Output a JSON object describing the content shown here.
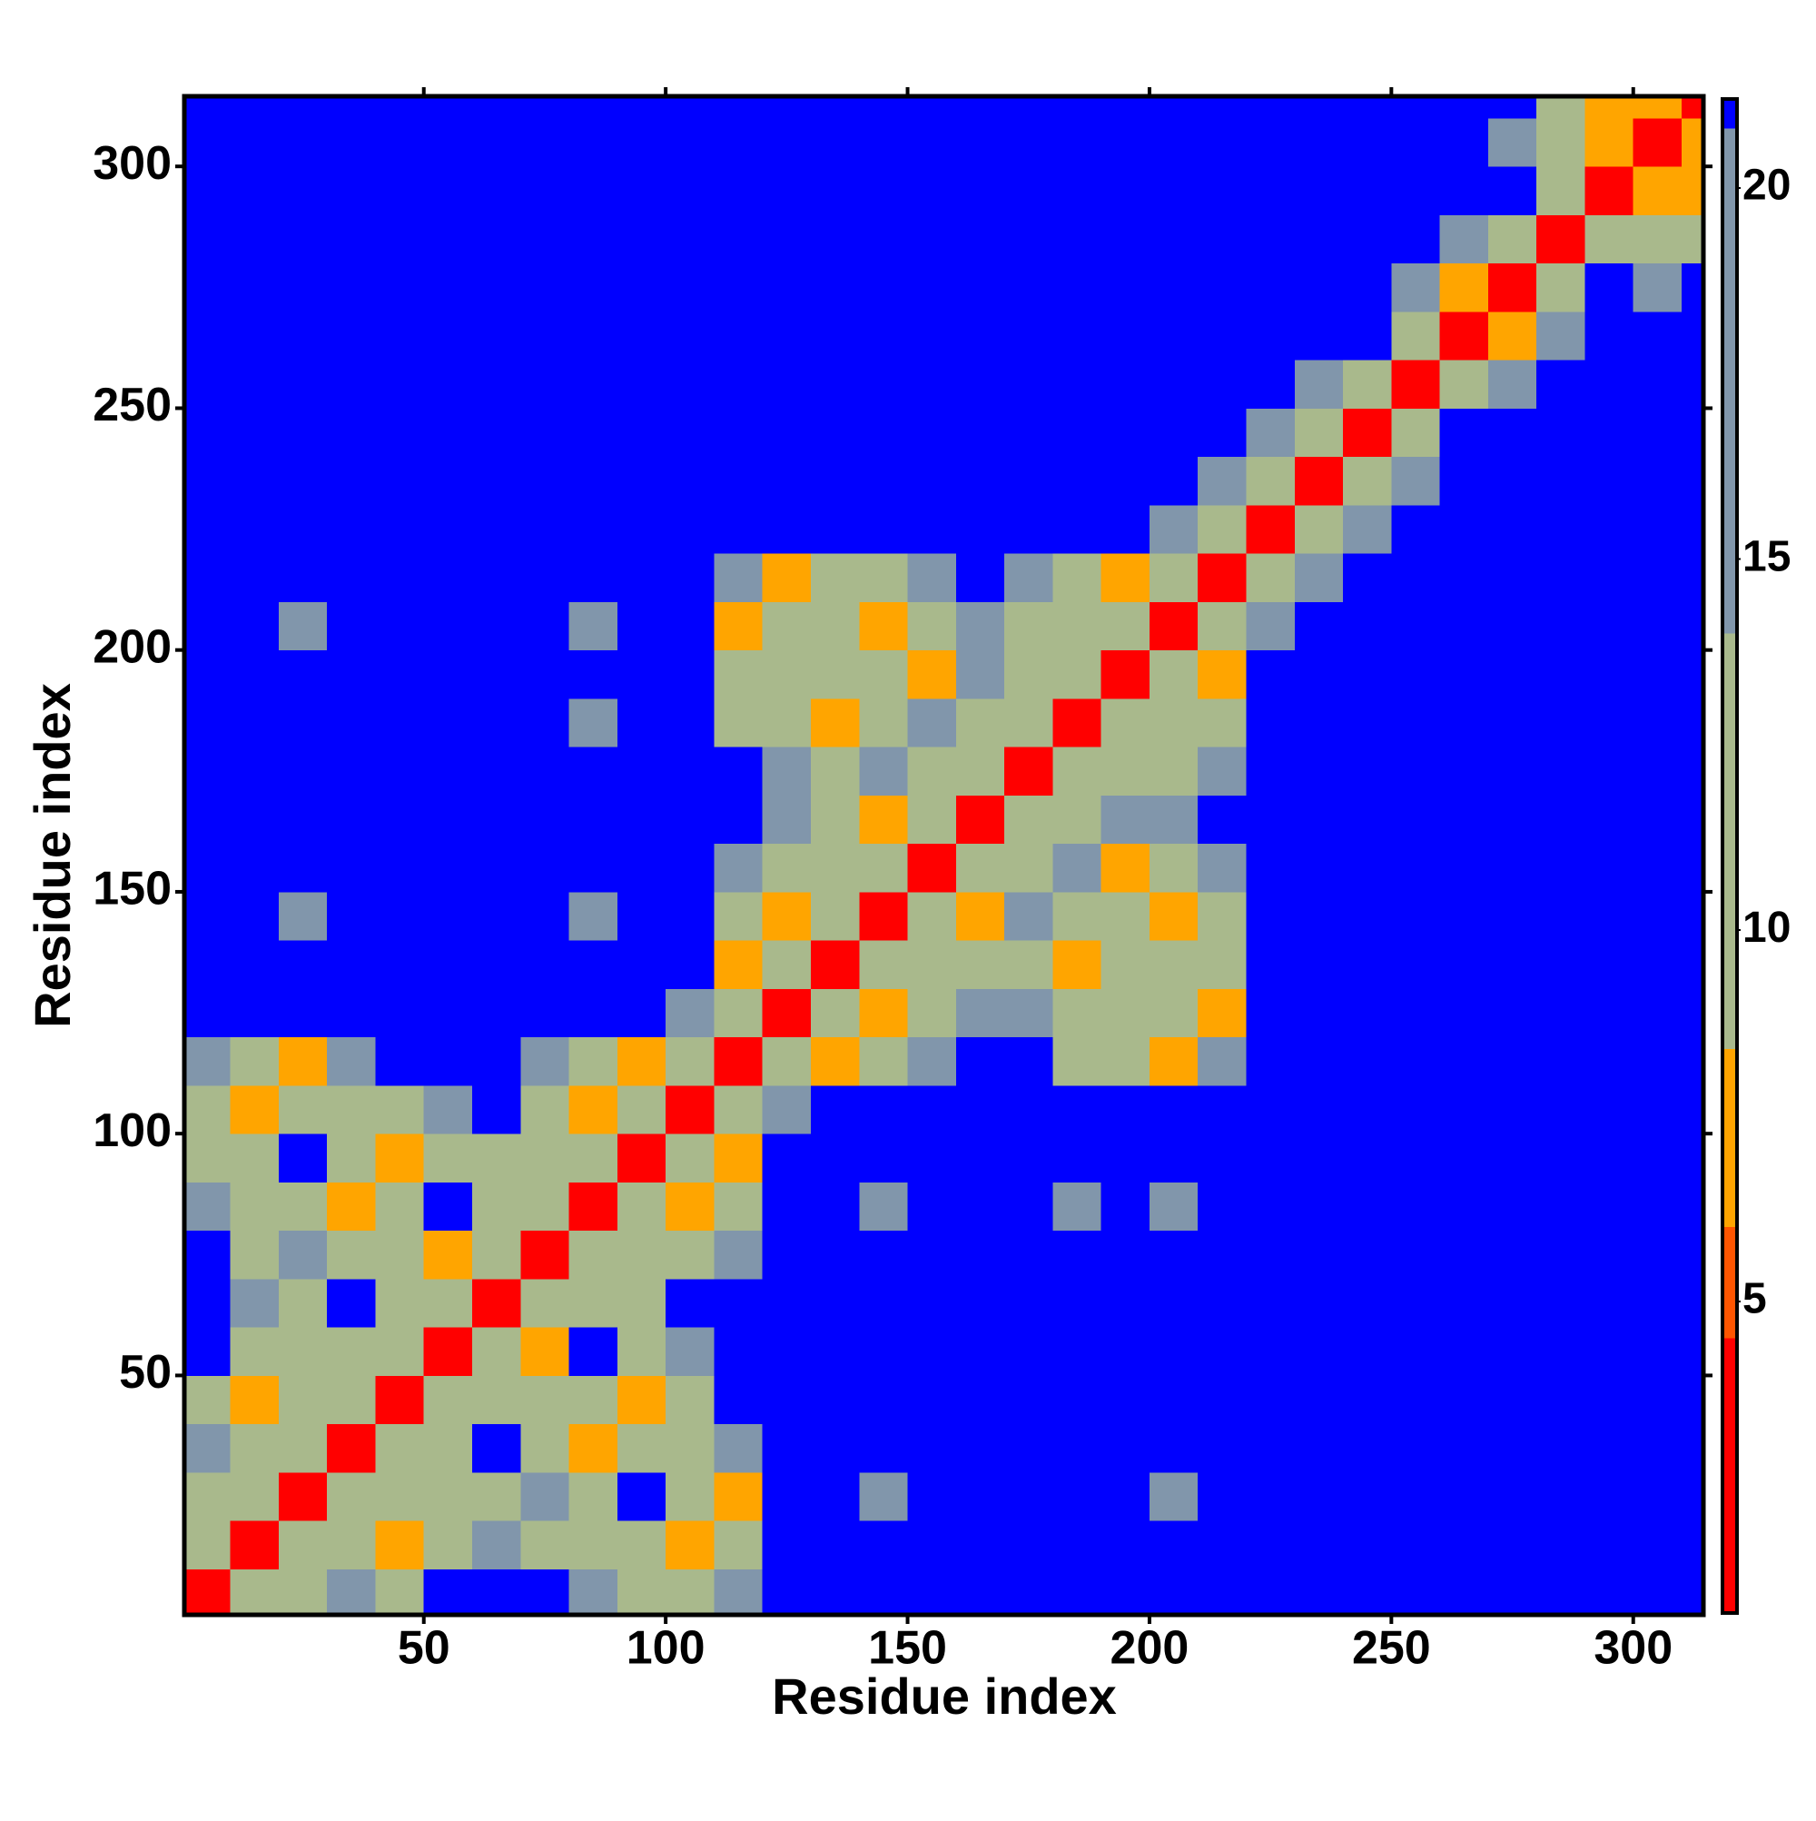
{
  "chart_data": {
    "type": "heatmap",
    "x_label": "Residue index",
    "y_label": "Residue index",
    "x": [
      5,
      15,
      25,
      35,
      45,
      55,
      65,
      75,
      85,
      95,
      105,
      115,
      125,
      135,
      145,
      155,
      165,
      175,
      185,
      195,
      205,
      215,
      225,
      235,
      245,
      255,
      265,
      275,
      285,
      295,
      305,
      315
    ],
    "y": [
      5,
      15,
      25,
      35,
      45,
      55,
      65,
      75,
      85,
      95,
      105,
      115,
      125,
      135,
      145,
      155,
      165,
      175,
      185,
      195,
      205,
      215,
      225,
      235,
      245,
      255,
      265,
      275,
      285,
      295,
      305,
      315
    ],
    "z": [
      [
        4,
        9,
        11,
        15,
        11,
        21,
        21,
        21,
        15,
        11,
        11,
        15,
        21,
        21,
        21,
        21,
        21,
        21,
        21,
        21,
        21,
        21,
        21,
        21,
        21,
        21,
        21,
        21,
        21,
        21,
        21,
        21
      ],
      [
        9,
        4,
        9,
        11,
        7,
        11,
        15,
        11,
        11,
        11,
        7,
        11,
        21,
        21,
        21,
        21,
        21,
        21,
        21,
        21,
        21,
        21,
        21,
        21,
        21,
        21,
        21,
        21,
        21,
        21,
        21,
        21
      ],
      [
        11,
        9,
        4,
        9,
        11,
        11,
        11,
        15,
        11,
        21,
        11,
        7,
        21,
        21,
        15,
        21,
        21,
        21,
        21,
        21,
        15,
        21,
        21,
        21,
        21,
        21,
        21,
        21,
        21,
        21,
        21,
        21
      ],
      [
        15,
        11,
        9,
        4,
        9,
        11,
        21,
        11,
        7,
        11,
        11,
        15,
        21,
        21,
        21,
        21,
        21,
        21,
        21,
        21,
        21,
        21,
        21,
        21,
        21,
        21,
        21,
        21,
        21,
        21,
        21,
        21
      ],
      [
        11,
        7,
        11,
        9,
        4,
        9,
        11,
        11,
        11,
        7,
        11,
        21,
        21,
        21,
        21,
        21,
        21,
        21,
        21,
        21,
        21,
        21,
        21,
        21,
        21,
        21,
        21,
        21,
        21,
        21,
        21,
        21
      ],
      [
        21,
        11,
        11,
        11,
        9,
        4,
        9,
        7,
        21,
        11,
        15,
        21,
        21,
        21,
        21,
        21,
        21,
        21,
        21,
        21,
        21,
        21,
        21,
        21,
        21,
        21,
        21,
        21,
        21,
        21,
        21,
        21
      ],
      [
        21,
        15,
        11,
        21,
        11,
        9,
        4,
        9,
        11,
        11,
        21,
        21,
        21,
        21,
        21,
        21,
        21,
        21,
        21,
        21,
        21,
        21,
        21,
        21,
        21,
        21,
        21,
        21,
        21,
        21,
        21,
        21
      ],
      [
        21,
        11,
        15,
        11,
        11,
        7,
        9,
        4,
        9,
        11,
        11,
        15,
        21,
        21,
        21,
        21,
        21,
        21,
        21,
        21,
        21,
        21,
        21,
        21,
        21,
        21,
        21,
        21,
        21,
        21,
        21,
        21
      ],
      [
        15,
        11,
        11,
        7,
        11,
        21,
        11,
        9,
        4,
        9,
        7,
        11,
        21,
        21,
        15,
        21,
        21,
        21,
        15,
        21,
        15,
        21,
        21,
        21,
        21,
        21,
        21,
        21,
        21,
        21,
        21,
        21
      ],
      [
        11,
        11,
        21,
        11,
        7,
        11,
        11,
        11,
        9,
        4,
        9,
        7,
        21,
        21,
        21,
        21,
        21,
        21,
        21,
        21,
        21,
        21,
        21,
        21,
        21,
        21,
        21,
        21,
        21,
        21,
        21,
        21
      ],
      [
        11,
        7,
        11,
        11,
        11,
        15,
        21,
        11,
        7,
        9,
        4,
        9,
        15,
        21,
        21,
        21,
        21,
        21,
        21,
        21,
        21,
        21,
        21,
        21,
        21,
        21,
        21,
        21,
        21,
        21,
        21,
        21
      ],
      [
        15,
        11,
        7,
        15,
        21,
        21,
        21,
        15,
        11,
        7,
        9,
        4,
        9,
        7,
        11,
        15,
        21,
        21,
        11,
        11,
        7,
        15,
        21,
        21,
        21,
        21,
        21,
        21,
        21,
        21,
        21,
        21
      ],
      [
        21,
        21,
        21,
        21,
        21,
        21,
        21,
        21,
        21,
        21,
        15,
        9,
        4,
        9,
        7,
        11,
        15,
        15,
        11,
        11,
        11,
        7,
        21,
        21,
        21,
        21,
        21,
        21,
        21,
        21,
        21,
        21
      ],
      [
        21,
        21,
        21,
        21,
        21,
        21,
        21,
        21,
        21,
        21,
        21,
        7,
        9,
        4,
        9,
        11,
        11,
        11,
        7,
        11,
        11,
        11,
        21,
        21,
        21,
        21,
        21,
        21,
        21,
        21,
        21,
        21
      ],
      [
        21,
        21,
        15,
        21,
        21,
        21,
        21,
        21,
        15,
        21,
        21,
        11,
        7,
        9,
        4,
        9,
        7,
        15,
        11,
        11,
        7,
        11,
        21,
        21,
        21,
        21,
        21,
        21,
        21,
        21,
        21,
        21
      ],
      [
        21,
        21,
        21,
        21,
        21,
        21,
        21,
        21,
        21,
        21,
        21,
        15,
        11,
        11,
        9,
        4,
        9,
        11,
        15,
        7,
        11,
        15,
        21,
        21,
        21,
        21,
        21,
        21,
        21,
        21,
        21,
        21
      ],
      [
        21,
        21,
        21,
        21,
        21,
        21,
        21,
        21,
        21,
        21,
        21,
        21,
        15,
        11,
        7,
        9,
        4,
        9,
        11,
        15,
        15,
        21,
        21,
        21,
        21,
        21,
        21,
        21,
        21,
        21,
        21,
        21
      ],
      [
        21,
        21,
        21,
        21,
        21,
        21,
        21,
        21,
        21,
        21,
        21,
        21,
        15,
        11,
        15,
        11,
        9,
        4,
        9,
        11,
        11,
        15,
        21,
        21,
        21,
        21,
        21,
        21,
        21,
        21,
        21,
        21
      ],
      [
        21,
        21,
        21,
        21,
        21,
        21,
        21,
        21,
        15,
        21,
        21,
        11,
        11,
        7,
        11,
        15,
        11,
        9,
        4,
        9,
        11,
        11,
        21,
        21,
        21,
        21,
        21,
        21,
        21,
        21,
        21,
        21
      ],
      [
        21,
        21,
        21,
        21,
        21,
        21,
        21,
        21,
        21,
        21,
        21,
        11,
        11,
        11,
        11,
        7,
        15,
        11,
        9,
        4,
        9,
        7,
        21,
        21,
        21,
        21,
        21,
        21,
        21,
        21,
        21,
        21
      ],
      [
        21,
        21,
        15,
        21,
        21,
        21,
        21,
        21,
        15,
        21,
        21,
        7,
        11,
        11,
        7,
        11,
        15,
        11,
        11,
        9,
        4,
        9,
        15,
        21,
        21,
        21,
        21,
        21,
        21,
        21,
        21,
        21
      ],
      [
        21,
        21,
        21,
        21,
        21,
        21,
        21,
        21,
        21,
        21,
        21,
        15,
        7,
        11,
        11,
        15,
        21,
        15,
        11,
        7,
        9,
        4,
        9,
        15,
        21,
        21,
        21,
        21,
        21,
        21,
        21,
        21
      ],
      [
        21,
        21,
        21,
        21,
        21,
        21,
        21,
        21,
        21,
        21,
        21,
        21,
        21,
        21,
        21,
        21,
        21,
        21,
        21,
        21,
        15,
        9,
        4,
        9,
        15,
        21,
        21,
        21,
        21,
        21,
        21,
        21
      ],
      [
        21,
        21,
        21,
        21,
        21,
        21,
        21,
        21,
        21,
        21,
        21,
        21,
        21,
        21,
        21,
        21,
        21,
        21,
        21,
        21,
        21,
        15,
        9,
        4,
        9,
        15,
        21,
        21,
        21,
        21,
        21,
        21
      ],
      [
        21,
        21,
        21,
        21,
        21,
        21,
        21,
        21,
        21,
        21,
        21,
        21,
        21,
        21,
        21,
        21,
        21,
        21,
        21,
        21,
        21,
        21,
        15,
        9,
        4,
        9,
        21,
        21,
        21,
        21,
        21,
        21
      ],
      [
        21,
        21,
        21,
        21,
        21,
        21,
        21,
        21,
        21,
        21,
        21,
        21,
        21,
        21,
        21,
        21,
        21,
        21,
        21,
        21,
        21,
        21,
        21,
        15,
        9,
        4,
        9,
        15,
        21,
        21,
        21,
        21
      ],
      [
        21,
        21,
        21,
        21,
        21,
        21,
        21,
        21,
        21,
        21,
        21,
        21,
        21,
        21,
        21,
        21,
        21,
        21,
        21,
        21,
        21,
        21,
        21,
        21,
        21,
        9,
        4,
        7,
        15,
        21,
        21,
        21
      ],
      [
        21,
        21,
        21,
        21,
        21,
        21,
        21,
        21,
        21,
        21,
        21,
        21,
        21,
        21,
        21,
        21,
        21,
        21,
        21,
        21,
        21,
        21,
        21,
        21,
        21,
        15,
        7,
        4,
        9,
        21,
        15,
        21
      ],
      [
        21,
        21,
        21,
        21,
        21,
        21,
        21,
        21,
        21,
        21,
        21,
        21,
        21,
        21,
        21,
        21,
        21,
        21,
        21,
        21,
        21,
        21,
        21,
        21,
        21,
        21,
        15,
        9,
        4,
        9,
        11,
        11
      ],
      [
        21,
        21,
        21,
        21,
        21,
        21,
        21,
        21,
        21,
        21,
        21,
        21,
        21,
        21,
        21,
        21,
        21,
        21,
        21,
        21,
        21,
        21,
        21,
        21,
        21,
        21,
        21,
        21,
        9,
        4,
        7,
        7
      ],
      [
        21,
        21,
        21,
        21,
        21,
        21,
        21,
        21,
        21,
        21,
        21,
        21,
        21,
        21,
        21,
        21,
        21,
        21,
        21,
        21,
        21,
        21,
        21,
        21,
        21,
        21,
        21,
        15,
        11,
        7,
        4,
        7
      ],
      [
        21,
        21,
        21,
        21,
        21,
        21,
        21,
        21,
        21,
        21,
        21,
        21,
        21,
        21,
        21,
        21,
        21,
        21,
        21,
        21,
        21,
        21,
        21,
        21,
        21,
        21,
        21,
        21,
        11,
        7,
        7,
        4
      ]
    ],
    "xlim": [
      0.5,
      314.5
    ],
    "ylim": [
      0.5,
      314.5
    ],
    "xticks": [
      50,
      100,
      150,
      200,
      250,
      300
    ],
    "yticks": [
      50,
      100,
      150,
      200,
      250,
      300
    ],
    "clim": [
      0.8,
      21.2
    ],
    "colorbar_ticks": [
      5,
      10,
      15,
      20
    ],
    "color_bins": [
      0.8,
      4.5,
      6,
      8.4,
      14,
      20.8,
      21.2
    ],
    "colors": [
      "#ff0000",
      "#ff5500",
      "#ffa500",
      "#a9b98c",
      "#8196ab",
      "#0000ff"
    ]
  }
}
